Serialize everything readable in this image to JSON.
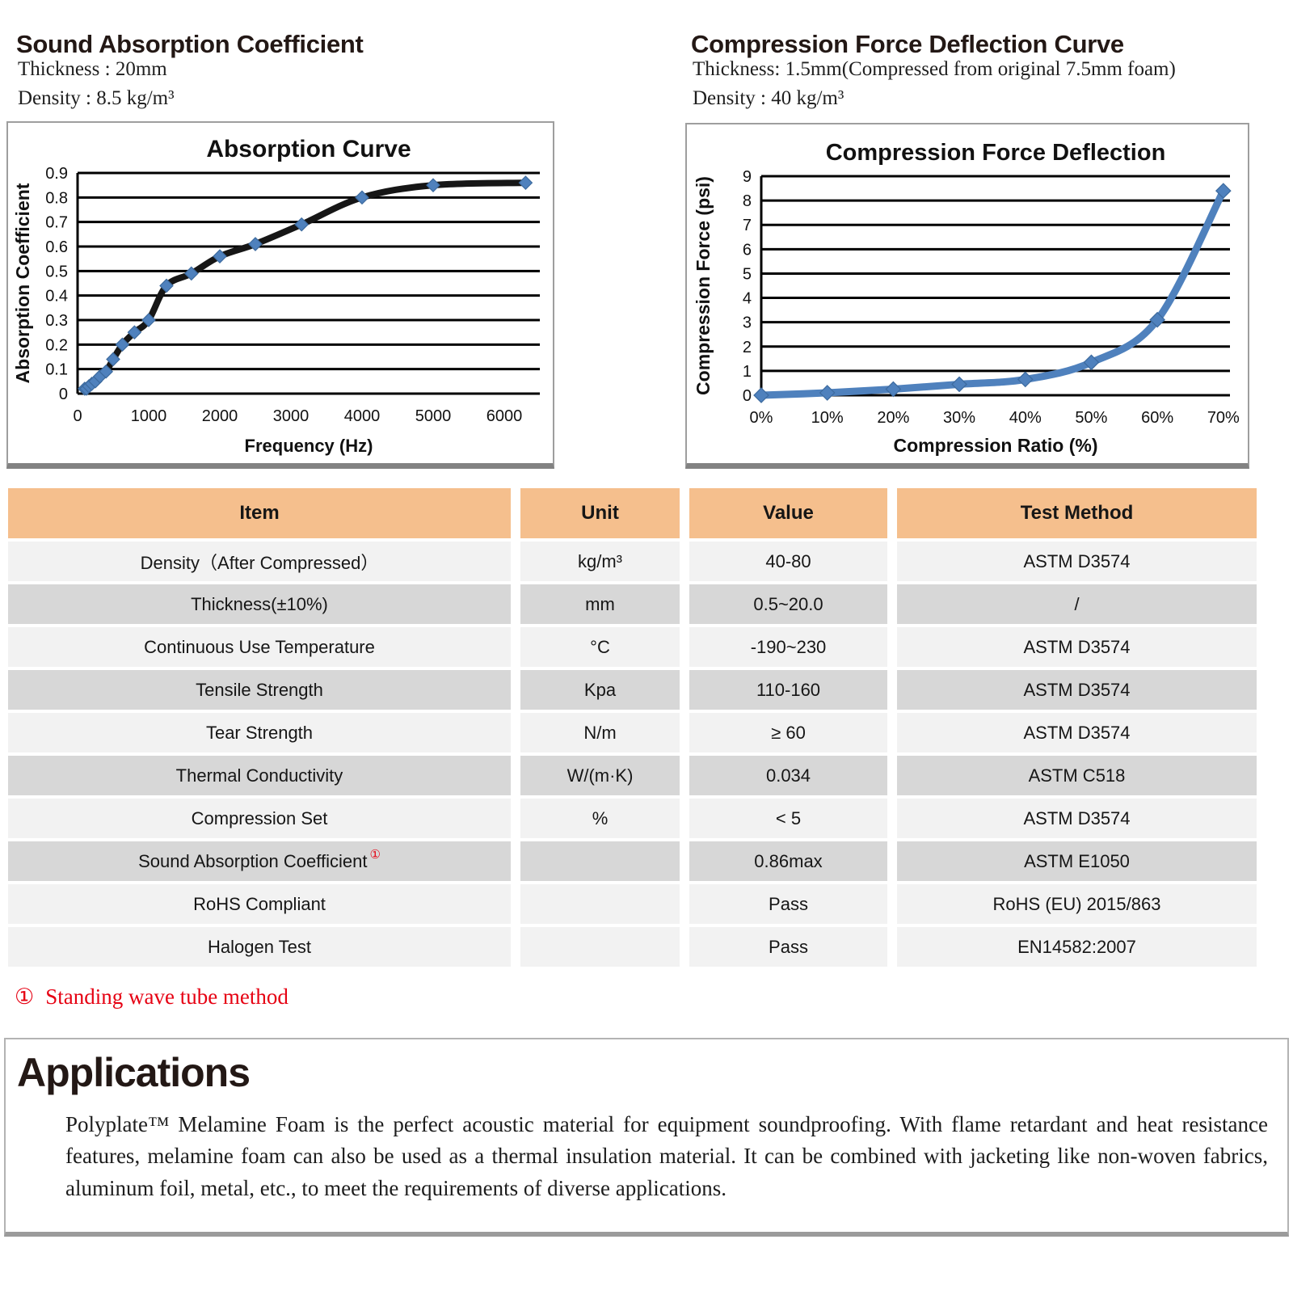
{
  "colors": {
    "accent_header": "#f5bf8d",
    "row_light": "#f2f2f2",
    "row_dark": "#d7d7d7",
    "chart_blue": "#4f81bd",
    "chart_blue_edge": "#3c6a9e",
    "line_black": "#161616",
    "footnote_red": "#e60012",
    "heading": "#231815"
  },
  "sections": {
    "sound": {
      "title": "Sound Absorption Coefficient",
      "spec_lines": [
        "Thickness : 20mm",
        "Density : 8.5 kg/m³"
      ]
    },
    "cfd": {
      "title": "Compression Force Deflection Curve",
      "spec_lines": [
        "Thickness: 1.5mm(Compressed from original 7.5mm foam)",
        "Density : 40 kg/m³"
      ]
    }
  },
  "chart_data": [
    {
      "type": "line",
      "title": "Absorption Curve",
      "xlabel": "Frequency (Hz)",
      "ylabel": "Absorption Coefficient",
      "x": [
        100,
        125,
        160,
        200,
        250,
        315,
        400,
        500,
        630,
        800,
        1000,
        1250,
        1600,
        2000,
        2500,
        3150,
        4000,
        5000,
        6300
      ],
      "y": [
        0.02,
        0.02,
        0.03,
        0.04,
        0.05,
        0.07,
        0.09,
        0.14,
        0.2,
        0.25,
        0.3,
        0.44,
        0.49,
        0.56,
        0.61,
        0.69,
        0.8,
        0.85,
        0.86
      ],
      "xlim": [
        0,
        6500
      ],
      "ylim": [
        0,
        0.9
      ],
      "xticks": [
        0,
        1000,
        2000,
        3000,
        4000,
        5000,
        6000
      ],
      "yticks": [
        0,
        0.1,
        0.2,
        0.3,
        0.4,
        0.5,
        0.6,
        0.7,
        0.8,
        0.9
      ],
      "ytick_decimals": 1,
      "grid": "horizontal",
      "legend": "none",
      "line_color": "#161616",
      "marker_color": "#4f81bd"
    },
    {
      "type": "line",
      "title": "Compression Force Deflection",
      "xlabel": "Compression Ratio (%)",
      "ylabel": "Compression Force  (psi)",
      "x": [
        0,
        10,
        20,
        30,
        40,
        50,
        60,
        70
      ],
      "y": [
        0,
        0.1,
        0.25,
        0.45,
        0.65,
        1.35,
        3.1,
        8.4
      ],
      "xlim": [
        0,
        71
      ],
      "ylim": [
        0,
        9
      ],
      "xticks": [
        0,
        10,
        20,
        30,
        40,
        50,
        60,
        70
      ],
      "xtick_labels": [
        "0%",
        "10%",
        "20%",
        "30%",
        "40%",
        "50%",
        "60%",
        "70%"
      ],
      "yticks": [
        0,
        1,
        2,
        3,
        4,
        5,
        6,
        7,
        8,
        9
      ],
      "ytick_decimals": 0,
      "grid": "horizontal",
      "legend": "none",
      "line_color": "#4f81bd",
      "marker_color": "#4f81bd"
    }
  ],
  "table": {
    "headers": [
      "Item",
      "Unit",
      "Value",
      "Test Method"
    ],
    "rows": [
      {
        "item": "Density（After Compressed）",
        "unit": "kg/m³",
        "value": "40-80",
        "method": "ASTM D3574",
        "tone": "light"
      },
      {
        "item": "Thickness(±10%)",
        "unit": "mm",
        "value": "0.5~20.0",
        "method": "/",
        "tone": "dark"
      },
      {
        "item": "Continuous Use Temperature",
        "unit": "°C",
        "value": "-190~230",
        "method": "ASTM D3574",
        "tone": "light"
      },
      {
        "item": "Tensile Strength",
        "unit": "Kpa",
        "value": "110-160",
        "method": "ASTM D3574",
        "tone": "dark"
      },
      {
        "item": "Tear Strength",
        "unit": "N/m",
        "value": "≥ 60",
        "method": "ASTM D3574",
        "tone": "light"
      },
      {
        "item": "Thermal Conductivity",
        "unit": "W/(m·K)",
        "value": "0.034",
        "method": "ASTM C518",
        "tone": "dark"
      },
      {
        "item": "Compression Set",
        "unit": "%",
        "value": "< 5",
        "method": "ASTM D3574",
        "tone": "light"
      },
      {
        "item": "Sound Absorption Coefficient",
        "note": "①",
        "unit": "",
        "value": "0.86max",
        "method": "ASTM E1050",
        "tone": "dark"
      },
      {
        "item": "RoHS Compliant",
        "unit": "",
        "value": "Pass",
        "method": "RoHS (EU) 2015/863",
        "tone": "light"
      },
      {
        "item": "Halogen Test",
        "unit": "",
        "value": "Pass",
        "method": "EN14582:2007",
        "tone": "light"
      }
    ]
  },
  "footnote": {
    "marker": "①",
    "text": "Standing wave tube method"
  },
  "applications": {
    "title": "Applications",
    "body": "Polyplate™ Melamine Foam is the perfect acoustic material for equipment soundproofing. With flame retardant and heat resistance features, melamine foam can also be used as a thermal insulation material. It can be combined with jacketing like non-woven fabrics, aluminum foil, metal, etc., to meet the requirements of diverse applications."
  }
}
